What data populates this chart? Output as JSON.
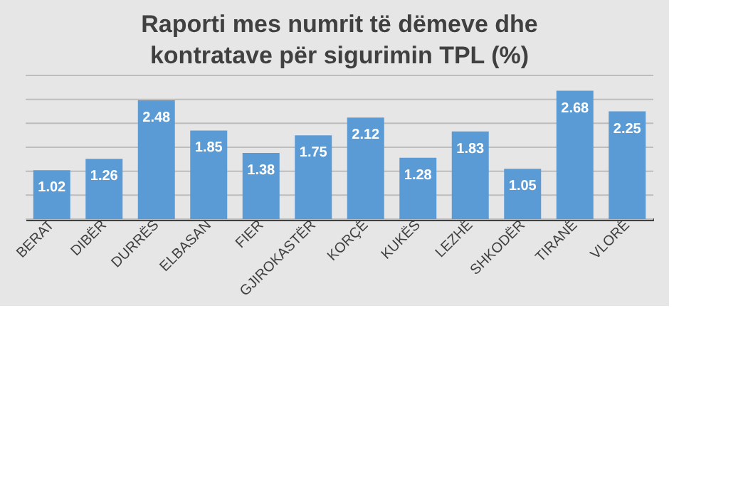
{
  "chart_data": {
    "type": "bar",
    "title": "Raporti mes numrit të dëmeve dhe kontratave për sigurimin TPL (%)",
    "categories": [
      "BERAT",
      "DIBËR",
      "DURRËS",
      "ELBASAN",
      "FIER",
      "GJIROKASTËR",
      "KORÇË",
      "KUKËS",
      "LEZHË",
      "SHKODËR",
      "TIRANË",
      "VLORË"
    ],
    "values": [
      1.02,
      1.26,
      2.48,
      1.85,
      1.38,
      1.75,
      2.12,
      1.28,
      1.83,
      1.05,
      2.68,
      2.25
    ],
    "color": "#5b9bd5",
    "ylim": [
      0,
      3
    ],
    "yticks": [
      {
        "value": 0,
        "label": null
      },
      {
        "value": 0.5,
        "label": null
      },
      {
        "value": 1,
        "label": null
      },
      {
        "value": 1.5,
        "label": null
      },
      {
        "value": 2,
        "label": null
      },
      {
        "value": 2.5,
        "label": null
      },
      {
        "value": 3,
        "label": null
      }
    ],
    "tick_labels": "x",
    "grid": "y",
    "data_labels": true
  }
}
